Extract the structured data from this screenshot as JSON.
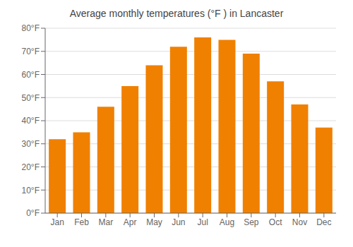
{
  "chart_data": {
    "type": "bar",
    "title": "Average monthly temperatures (°F ) in Lancaster",
    "categories": [
      "Jan",
      "Feb",
      "Mar",
      "Apr",
      "May",
      "Jun",
      "Jul",
      "Aug",
      "Sep",
      "Oct",
      "Nov",
      "Dec"
    ],
    "values": [
      32,
      35,
      46,
      55,
      64,
      72,
      76,
      75,
      69,
      57,
      47,
      37
    ],
    "color": "#F08000",
    "ylim": [
      0,
      80
    ],
    "yticks": [
      {
        "value": 0,
        "label": "0°F"
      },
      {
        "value": 10,
        "label": "10°F"
      },
      {
        "value": 20,
        "label": "20°F"
      },
      {
        "value": 30,
        "label": "30°F"
      },
      {
        "value": 40,
        "label": "40°F"
      },
      {
        "value": 50,
        "label": "50°F"
      },
      {
        "value": 60,
        "label": "60°F"
      },
      {
        "value": 70,
        "label": "70°F"
      },
      {
        "value": 80,
        "label": "80°F"
      }
    ],
    "grid": true
  }
}
